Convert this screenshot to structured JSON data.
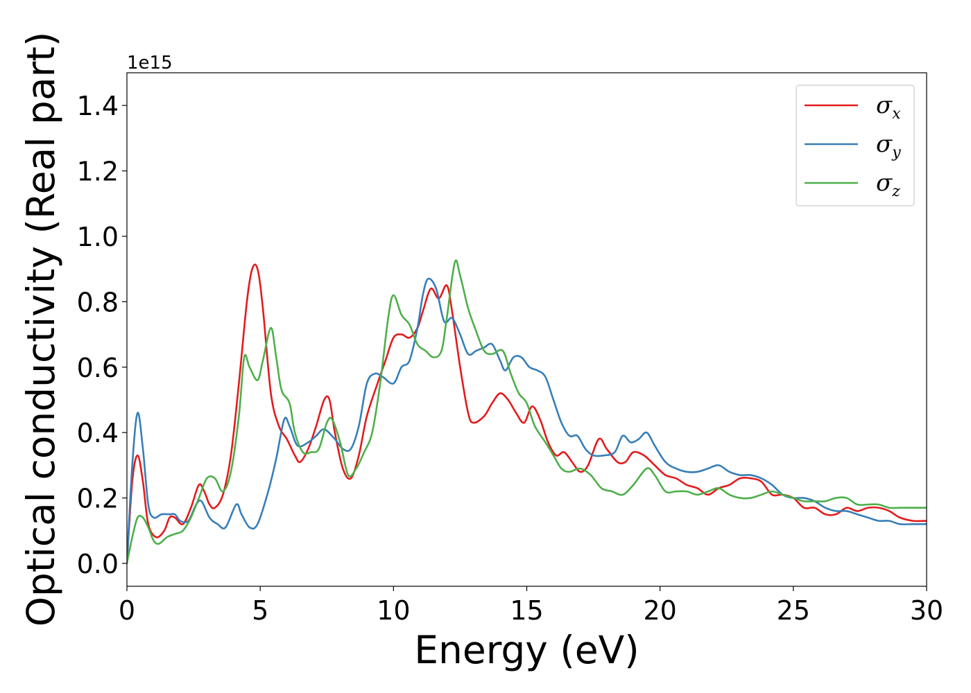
{
  "chart_data": {
    "type": "line",
    "xlabel": "Energy (eV)",
    "ylabel": "Optical conductivity (Real part)",
    "offset_text": "1e15",
    "xlim": [
      0,
      30
    ],
    "ylim": [
      -0.07,
      1.5
    ],
    "xticks": [
      0,
      5,
      10,
      15,
      20,
      25,
      30
    ],
    "xtick_labels": [
      "0",
      "5",
      "10",
      "15",
      "20",
      "25",
      "30"
    ],
    "yticks": [
      0.0,
      0.2,
      0.4,
      0.6,
      0.8,
      1.0,
      1.2,
      1.4
    ],
    "ytick_labels": [
      "0.0",
      "0.2",
      "0.4",
      "0.6",
      "0.8",
      "1.0",
      "1.2",
      "1.4"
    ],
    "grid": false,
    "legend_position": "top-right",
    "series": [
      {
        "name": "σx",
        "base": "σ",
        "sub": "x",
        "color": "#e41a1c",
        "points": [
          [
            0,
            0
          ],
          [
            0.2,
            0.25
          ],
          [
            0.4,
            0.33
          ],
          [
            0.6,
            0.25
          ],
          [
            0.8,
            0.12
          ],
          [
            1.1,
            0.08
          ],
          [
            1.4,
            0.1
          ],
          [
            1.6,
            0.14
          ],
          [
            1.8,
            0.14
          ],
          [
            2.1,
            0.12
          ],
          [
            2.4,
            0.17
          ],
          [
            2.7,
            0.24
          ],
          [
            2.9,
            0.22
          ],
          [
            3.1,
            0.18
          ],
          [
            3.3,
            0.17
          ],
          [
            3.6,
            0.21
          ],
          [
            3.9,
            0.33
          ],
          [
            4.2,
            0.55
          ],
          [
            4.5,
            0.8
          ],
          [
            4.7,
            0.9
          ],
          [
            4.9,
            0.9
          ],
          [
            5.1,
            0.78
          ],
          [
            5.4,
            0.52
          ],
          [
            5.7,
            0.42
          ],
          [
            6.0,
            0.38
          ],
          [
            6.3,
            0.33
          ],
          [
            6.5,
            0.31
          ],
          [
            6.8,
            0.35
          ],
          [
            7.1,
            0.42
          ],
          [
            7.4,
            0.5
          ],
          [
            7.6,
            0.5
          ],
          [
            7.8,
            0.4
          ],
          [
            8.1,
            0.29
          ],
          [
            8.4,
            0.26
          ],
          [
            8.7,
            0.33
          ],
          [
            9.0,
            0.45
          ],
          [
            9.4,
            0.55
          ],
          [
            9.7,
            0.62
          ],
          [
            10.0,
            0.69
          ],
          [
            10.3,
            0.7
          ],
          [
            10.6,
            0.69
          ],
          [
            10.9,
            0.72
          ],
          [
            11.1,
            0.77
          ],
          [
            11.4,
            0.84
          ],
          [
            11.7,
            0.81
          ],
          [
            12.0,
            0.85
          ],
          [
            12.2,
            0.77
          ],
          [
            12.5,
            0.6
          ],
          [
            12.8,
            0.46
          ],
          [
            13.0,
            0.43
          ],
          [
            13.4,
            0.45
          ],
          [
            13.7,
            0.49
          ],
          [
            14.0,
            0.52
          ],
          [
            14.3,
            0.5
          ],
          [
            14.6,
            0.46
          ],
          [
            14.9,
            0.43
          ],
          [
            15.2,
            0.48
          ],
          [
            15.5,
            0.44
          ],
          [
            15.8,
            0.37
          ],
          [
            16.1,
            0.33
          ],
          [
            16.4,
            0.34
          ],
          [
            16.7,
            0.31
          ],
          [
            17.0,
            0.28
          ],
          [
            17.3,
            0.3
          ],
          [
            17.7,
            0.38
          ],
          [
            18.0,
            0.35
          ],
          [
            18.4,
            0.31
          ],
          [
            18.7,
            0.31
          ],
          [
            19.0,
            0.34
          ],
          [
            19.4,
            0.33
          ],
          [
            19.8,
            0.3
          ],
          [
            20.2,
            0.27
          ],
          [
            20.6,
            0.26
          ],
          [
            21.0,
            0.24
          ],
          [
            21.4,
            0.23
          ],
          [
            21.8,
            0.21
          ],
          [
            22.2,
            0.23
          ],
          [
            22.6,
            0.24
          ],
          [
            23.0,
            0.26
          ],
          [
            23.4,
            0.26
          ],
          [
            23.8,
            0.25
          ],
          [
            24.2,
            0.21
          ],
          [
            24.6,
            0.21
          ],
          [
            25.0,
            0.2
          ],
          [
            25.4,
            0.17
          ],
          [
            25.8,
            0.17
          ],
          [
            26.2,
            0.15
          ],
          [
            26.6,
            0.15
          ],
          [
            27.0,
            0.17
          ],
          [
            27.4,
            0.16
          ],
          [
            27.8,
            0.17
          ],
          [
            28.2,
            0.17
          ],
          [
            28.6,
            0.16
          ],
          [
            29.0,
            0.14
          ],
          [
            29.5,
            0.13
          ],
          [
            30.0,
            0.13
          ]
        ]
      },
      {
        "name": "σy",
        "base": "σ",
        "sub": "y",
        "color": "#377eb8",
        "points": [
          [
            0,
            0
          ],
          [
            0.2,
            0.3
          ],
          [
            0.4,
            0.46
          ],
          [
            0.6,
            0.35
          ],
          [
            0.8,
            0.18
          ],
          [
            1.0,
            0.14
          ],
          [
            1.3,
            0.15
          ],
          [
            1.6,
            0.15
          ],
          [
            1.8,
            0.15
          ],
          [
            2.0,
            0.13
          ],
          [
            2.3,
            0.13
          ],
          [
            2.6,
            0.18
          ],
          [
            2.8,
            0.19
          ],
          [
            3.1,
            0.14
          ],
          [
            3.4,
            0.12
          ],
          [
            3.7,
            0.11
          ],
          [
            4.1,
            0.18
          ],
          [
            4.3,
            0.15
          ],
          [
            4.6,
            0.11
          ],
          [
            4.9,
            0.12
          ],
          [
            5.3,
            0.22
          ],
          [
            5.6,
            0.32
          ],
          [
            5.9,
            0.44
          ],
          [
            6.1,
            0.42
          ],
          [
            6.4,
            0.36
          ],
          [
            6.8,
            0.37
          ],
          [
            7.1,
            0.39
          ],
          [
            7.4,
            0.41
          ],
          [
            7.8,
            0.38
          ],
          [
            8.1,
            0.35
          ],
          [
            8.4,
            0.35
          ],
          [
            8.7,
            0.42
          ],
          [
            9.0,
            0.55
          ],
          [
            9.3,
            0.58
          ],
          [
            9.6,
            0.57
          ],
          [
            10.0,
            0.55
          ],
          [
            10.3,
            0.6
          ],
          [
            10.6,
            0.62
          ],
          [
            10.9,
            0.72
          ],
          [
            11.1,
            0.82
          ],
          [
            11.3,
            0.87
          ],
          [
            11.6,
            0.84
          ],
          [
            11.9,
            0.74
          ],
          [
            12.2,
            0.75
          ],
          [
            12.5,
            0.7
          ],
          [
            12.8,
            0.64
          ],
          [
            13.1,
            0.65
          ],
          [
            13.4,
            0.66
          ],
          [
            13.7,
            0.67
          ],
          [
            14.0,
            0.62
          ],
          [
            14.2,
            0.59
          ],
          [
            14.5,
            0.63
          ],
          [
            14.8,
            0.63
          ],
          [
            15.1,
            0.6
          ],
          [
            15.4,
            0.59
          ],
          [
            15.7,
            0.57
          ],
          [
            16.0,
            0.5
          ],
          [
            16.3,
            0.43
          ],
          [
            16.6,
            0.39
          ],
          [
            16.9,
            0.39
          ],
          [
            17.2,
            0.35
          ],
          [
            17.5,
            0.33
          ],
          [
            17.9,
            0.33
          ],
          [
            18.3,
            0.34
          ],
          [
            18.6,
            0.39
          ],
          [
            18.9,
            0.37
          ],
          [
            19.2,
            0.38
          ],
          [
            19.5,
            0.4
          ],
          [
            19.8,
            0.36
          ],
          [
            20.2,
            0.31
          ],
          [
            20.6,
            0.29
          ],
          [
            21.0,
            0.28
          ],
          [
            21.4,
            0.28
          ],
          [
            21.8,
            0.29
          ],
          [
            22.2,
            0.3
          ],
          [
            22.6,
            0.28
          ],
          [
            23.0,
            0.27
          ],
          [
            23.4,
            0.27
          ],
          [
            23.8,
            0.26
          ],
          [
            24.2,
            0.24
          ],
          [
            24.6,
            0.21
          ],
          [
            25.0,
            0.2
          ],
          [
            25.4,
            0.2
          ],
          [
            25.8,
            0.19
          ],
          [
            26.2,
            0.17
          ],
          [
            26.6,
            0.16
          ],
          [
            27.0,
            0.16
          ],
          [
            27.4,
            0.15
          ],
          [
            27.8,
            0.14
          ],
          [
            28.2,
            0.13
          ],
          [
            28.6,
            0.13
          ],
          [
            29.0,
            0.12
          ],
          [
            29.5,
            0.12
          ],
          [
            30.0,
            0.12
          ]
        ]
      },
      {
        "name": "σz",
        "base": "σ",
        "sub": "z",
        "color": "#4daf4a",
        "points": [
          [
            0,
            0
          ],
          [
            0.2,
            0.08
          ],
          [
            0.4,
            0.14
          ],
          [
            0.6,
            0.14
          ],
          [
            0.8,
            0.11
          ],
          [
            1.0,
            0.07
          ],
          [
            1.2,
            0.06
          ],
          [
            1.5,
            0.08
          ],
          [
            1.8,
            0.09
          ],
          [
            2.1,
            0.1
          ],
          [
            2.4,
            0.14
          ],
          [
            2.7,
            0.2
          ],
          [
            3.0,
            0.26
          ],
          [
            3.3,
            0.26
          ],
          [
            3.6,
            0.22
          ],
          [
            3.9,
            0.28
          ],
          [
            4.2,
            0.45
          ],
          [
            4.4,
            0.63
          ],
          [
            4.6,
            0.6
          ],
          [
            4.9,
            0.56
          ],
          [
            5.1,
            0.62
          ],
          [
            5.4,
            0.72
          ],
          [
            5.6,
            0.63
          ],
          [
            5.8,
            0.53
          ],
          [
            6.1,
            0.49
          ],
          [
            6.3,
            0.4
          ],
          [
            6.6,
            0.34
          ],
          [
            6.9,
            0.34
          ],
          [
            7.2,
            0.35
          ],
          [
            7.5,
            0.43
          ],
          [
            7.7,
            0.44
          ],
          [
            8.0,
            0.37
          ],
          [
            8.3,
            0.27
          ],
          [
            8.6,
            0.29
          ],
          [
            8.9,
            0.34
          ],
          [
            9.2,
            0.4
          ],
          [
            9.5,
            0.55
          ],
          [
            9.8,
            0.75
          ],
          [
            10.0,
            0.82
          ],
          [
            10.3,
            0.76
          ],
          [
            10.6,
            0.73
          ],
          [
            10.9,
            0.67
          ],
          [
            11.2,
            0.65
          ],
          [
            11.5,
            0.63
          ],
          [
            11.8,
            0.65
          ],
          [
            12.0,
            0.75
          ],
          [
            12.3,
            0.92
          ],
          [
            12.5,
            0.88
          ],
          [
            12.8,
            0.78
          ],
          [
            13.1,
            0.71
          ],
          [
            13.4,
            0.65
          ],
          [
            13.7,
            0.64
          ],
          [
            14.1,
            0.65
          ],
          [
            14.4,
            0.58
          ],
          [
            14.7,
            0.52
          ],
          [
            15.0,
            0.49
          ],
          [
            15.3,
            0.42
          ],
          [
            15.7,
            0.37
          ],
          [
            16.0,
            0.33
          ],
          [
            16.3,
            0.29
          ],
          [
            16.6,
            0.28
          ],
          [
            17.0,
            0.29
          ],
          [
            17.4,
            0.27
          ],
          [
            17.8,
            0.23
          ],
          [
            18.2,
            0.22
          ],
          [
            18.6,
            0.21
          ],
          [
            19.0,
            0.24
          ],
          [
            19.5,
            0.29
          ],
          [
            19.8,
            0.27
          ],
          [
            20.2,
            0.22
          ],
          [
            20.6,
            0.22
          ],
          [
            21.0,
            0.22
          ],
          [
            21.4,
            0.21
          ],
          [
            21.8,
            0.22
          ],
          [
            22.2,
            0.23
          ],
          [
            22.6,
            0.21
          ],
          [
            23.0,
            0.2
          ],
          [
            23.4,
            0.2
          ],
          [
            23.8,
            0.21
          ],
          [
            24.2,
            0.22
          ],
          [
            24.6,
            0.21
          ],
          [
            25.0,
            0.2
          ],
          [
            25.4,
            0.19
          ],
          [
            25.8,
            0.19
          ],
          [
            26.2,
            0.19
          ],
          [
            26.6,
            0.2
          ],
          [
            27.0,
            0.2
          ],
          [
            27.4,
            0.18
          ],
          [
            27.8,
            0.18
          ],
          [
            28.2,
            0.18
          ],
          [
            28.6,
            0.17
          ],
          [
            29.0,
            0.17
          ],
          [
            29.5,
            0.17
          ],
          [
            30.0,
            0.17
          ]
        ]
      }
    ]
  }
}
